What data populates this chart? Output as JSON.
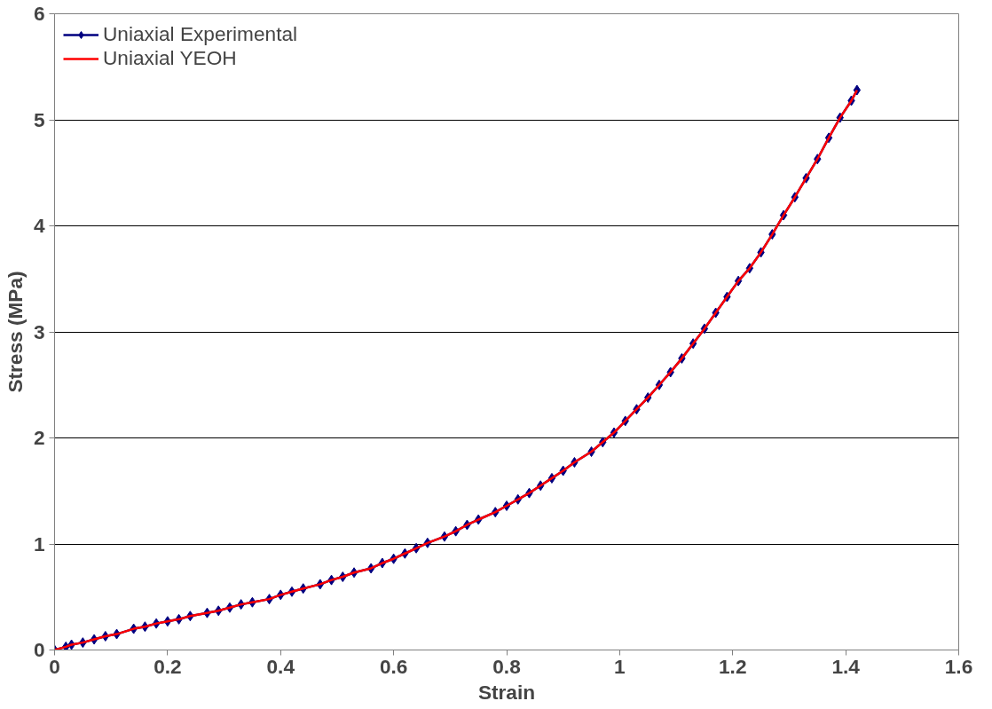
{
  "chart_data": {
    "type": "line",
    "xlabel": "Strain",
    "ylabel": "Stress (MPa)",
    "xlim": [
      0,
      1.6
    ],
    "xticks": [
      0,
      0.2,
      0.4,
      0.6,
      0.8,
      1,
      1.2,
      1.4,
      1.6
    ],
    "ylim": [
      0,
      6
    ],
    "yticks": [
      0,
      1,
      2,
      3,
      4,
      5,
      6
    ],
    "grid": "y",
    "legend": "top left",
    "x": [
      0,
      0.02,
      0.03,
      0.05,
      0.07,
      0.09,
      0.11,
      0.14,
      0.16,
      0.18,
      0.2,
      0.22,
      0.24,
      0.27,
      0.29,
      0.31,
      0.33,
      0.35,
      0.38,
      0.4,
      0.42,
      0.44,
      0.47,
      0.49,
      0.51,
      0.53,
      0.56,
      0.58,
      0.6,
      0.62,
      0.64,
      0.66,
      0.69,
      0.71,
      0.73,
      0.75,
      0.78,
      0.8,
      0.82,
      0.84,
      0.86,
      0.88,
      0.9,
      0.92,
      0.95,
      0.97,
      0.99,
      1.01,
      1.03,
      1.05,
      1.07,
      1.09,
      1.11,
      1.13,
      1.15,
      1.17,
      1.19,
      1.21,
      1.23,
      1.25,
      1.27,
      1.29,
      1.31,
      1.33,
      1.35,
      1.37,
      1.39,
      1.41,
      1.42
    ],
    "series": [
      {
        "name": "Uniaxial Experimental",
        "color": "#000080",
        "marker": "diamond",
        "values": [
          0,
          0.03,
          0.05,
          0.07,
          0.1,
          0.13,
          0.15,
          0.2,
          0.22,
          0.25,
          0.27,
          0.29,
          0.32,
          0.35,
          0.37,
          0.4,
          0.43,
          0.45,
          0.48,
          0.52,
          0.55,
          0.58,
          0.62,
          0.66,
          0.69,
          0.73,
          0.77,
          0.82,
          0.86,
          0.91,
          0.96,
          1.01,
          1.07,
          1.12,
          1.18,
          1.23,
          1.3,
          1.36,
          1.42,
          1.48,
          1.55,
          1.62,
          1.69,
          1.77,
          1.87,
          1.96,
          2.05,
          2.16,
          2.27,
          2.38,
          2.5,
          2.62,
          2.75,
          2.89,
          3.03,
          3.18,
          3.33,
          3.48,
          3.6,
          3.75,
          3.92,
          4.1,
          4.27,
          4.45,
          4.63,
          4.83,
          5.02,
          5.18,
          5.28
        ]
      },
      {
        "name": "Uniaxial YEOH",
        "color": "#ff0000",
        "marker": "none",
        "values": [
          0,
          0.03,
          0.05,
          0.07,
          0.1,
          0.13,
          0.15,
          0.2,
          0.22,
          0.25,
          0.27,
          0.29,
          0.32,
          0.35,
          0.37,
          0.4,
          0.43,
          0.45,
          0.48,
          0.52,
          0.55,
          0.58,
          0.62,
          0.66,
          0.69,
          0.73,
          0.77,
          0.82,
          0.86,
          0.91,
          0.96,
          1.01,
          1.07,
          1.12,
          1.18,
          1.23,
          1.3,
          1.36,
          1.42,
          1.48,
          1.55,
          1.62,
          1.69,
          1.77,
          1.87,
          1.96,
          2.05,
          2.16,
          2.27,
          2.38,
          2.5,
          2.62,
          2.75,
          2.89,
          3.03,
          3.18,
          3.33,
          3.48,
          3.6,
          3.75,
          3.92,
          4.1,
          4.27,
          4.45,
          4.63,
          4.83,
          5.02,
          5.18,
          5.28
        ]
      }
    ]
  }
}
